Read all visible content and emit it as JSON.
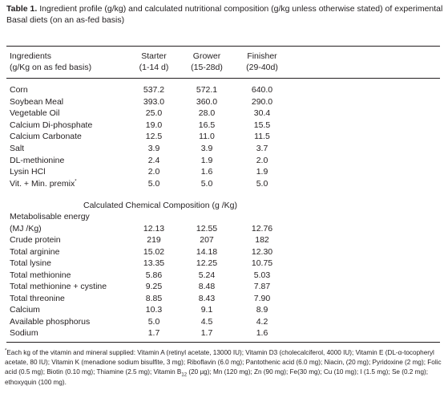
{
  "caption": {
    "label": "Table 1.",
    "text": " Ingredient profile (g/kg) and calculated nutritional composition (g/kg unless otherwise stated) of experimental Basal diets (on an as-fed basis)"
  },
  "header": {
    "col0_line1": "Ingredients",
    "col0_line2": "(g/Kg on as fed basis)",
    "columns": [
      {
        "line1": "Starter",
        "line2": "(1-14 d)"
      },
      {
        "line1": "Grower",
        "line2": "(15-28d)"
      },
      {
        "line1": "Finisher",
        "line2": "(29-40d)"
      }
    ]
  },
  "ingredients": [
    {
      "name": "Corn",
      "values": [
        "537.2",
        "572.1",
        "640.0"
      ]
    },
    {
      "name": "Soybean Meal",
      "values": [
        "393.0",
        "360.0",
        "290.0"
      ]
    },
    {
      "name": "Vegetable Oil",
      "values": [
        "25.0",
        "28.0",
        "30.4"
      ]
    },
    {
      "name": "Calcium Di-phosphate",
      "values": [
        "19.0",
        "16.5",
        "15.5"
      ]
    },
    {
      "name": "Calcium Carbonate",
      "values": [
        "12.5",
        "11.0",
        "11.5"
      ]
    },
    {
      "name": "Salt",
      "values": [
        "3.9",
        "3.9",
        "3.7"
      ]
    },
    {
      "name": "DL-methionine",
      "values": [
        "2.4",
        "1.9",
        "2.0"
      ]
    },
    {
      "name": "Lysin HCl",
      "values": [
        "2.0",
        "1.6",
        "1.9"
      ]
    },
    {
      "name": "Vit. + Min. premix",
      "sup": "*",
      "values": [
        "5.0",
        "5.0",
        "5.0"
      ]
    }
  ],
  "section_title": "Calculated Chemical Composition (g /Kg)",
  "composition": [
    {
      "name": "Metabolisable energy",
      "values": [
        "",
        "",
        ""
      ]
    },
    {
      "name": "(MJ /Kg)",
      "values": [
        "12.13",
        "12.55",
        "12.76"
      ]
    },
    {
      "name": "Crude protein",
      "values": [
        "219",
        "207",
        "182"
      ]
    },
    {
      "name": "Total arginine",
      "values": [
        "15.02",
        "14.18",
        "12.30"
      ]
    },
    {
      "name": "Total lysine",
      "values": [
        "13.35",
        "12.25",
        "10.75"
      ]
    },
    {
      "name": "Total methionine",
      "values": [
        "5.86",
        "5.24",
        "5.03"
      ]
    },
    {
      "name": "Total methionine + cystine",
      "values": [
        "9.25",
        "8.48",
        "7.87"
      ]
    },
    {
      "name": "Total threonine",
      "values": [
        "8.85",
        "8.43",
        "7.90"
      ]
    },
    {
      "name": "Calcium",
      "values": [
        "10.3",
        "9.1",
        "8.9"
      ]
    },
    {
      "name": "Available phosphorus",
      "values": [
        "5.0",
        "4.5",
        "4.2"
      ]
    },
    {
      "name": "Sodium",
      "values": [
        "1.7",
        "1.7",
        "1.6"
      ]
    }
  ],
  "footnote": {
    "marker": "*",
    "part1": "Each kg of the vitamin and mineral supplied: Vitamin A (retinyl acetate, 13000 IU); Vitamin D3 (cholecalciferol, 4000 IU); Vitamin E (DL-α-tocopheryl acetate, 80 IU); Vitamin K (menadione sodium bisulfite, 3 mg); Riboflavin (6.0 mg); Pantothenic acid (6.0 mg); Niacin, (20 mg); Pyridoxine (2 mg); Folic acid (0.5 mg); Biotin (0.10 mg); Thiamine (2.5 mg); Vitamin B",
    "sub": "12",
    "part2": " (20 µg); Mn (120 mg); Zn (90 mg); Fe(30 mg); Cu (10 mg); I (1.5 mg); Se (0.2 mg); ethoxyquin (100 mg)."
  }
}
